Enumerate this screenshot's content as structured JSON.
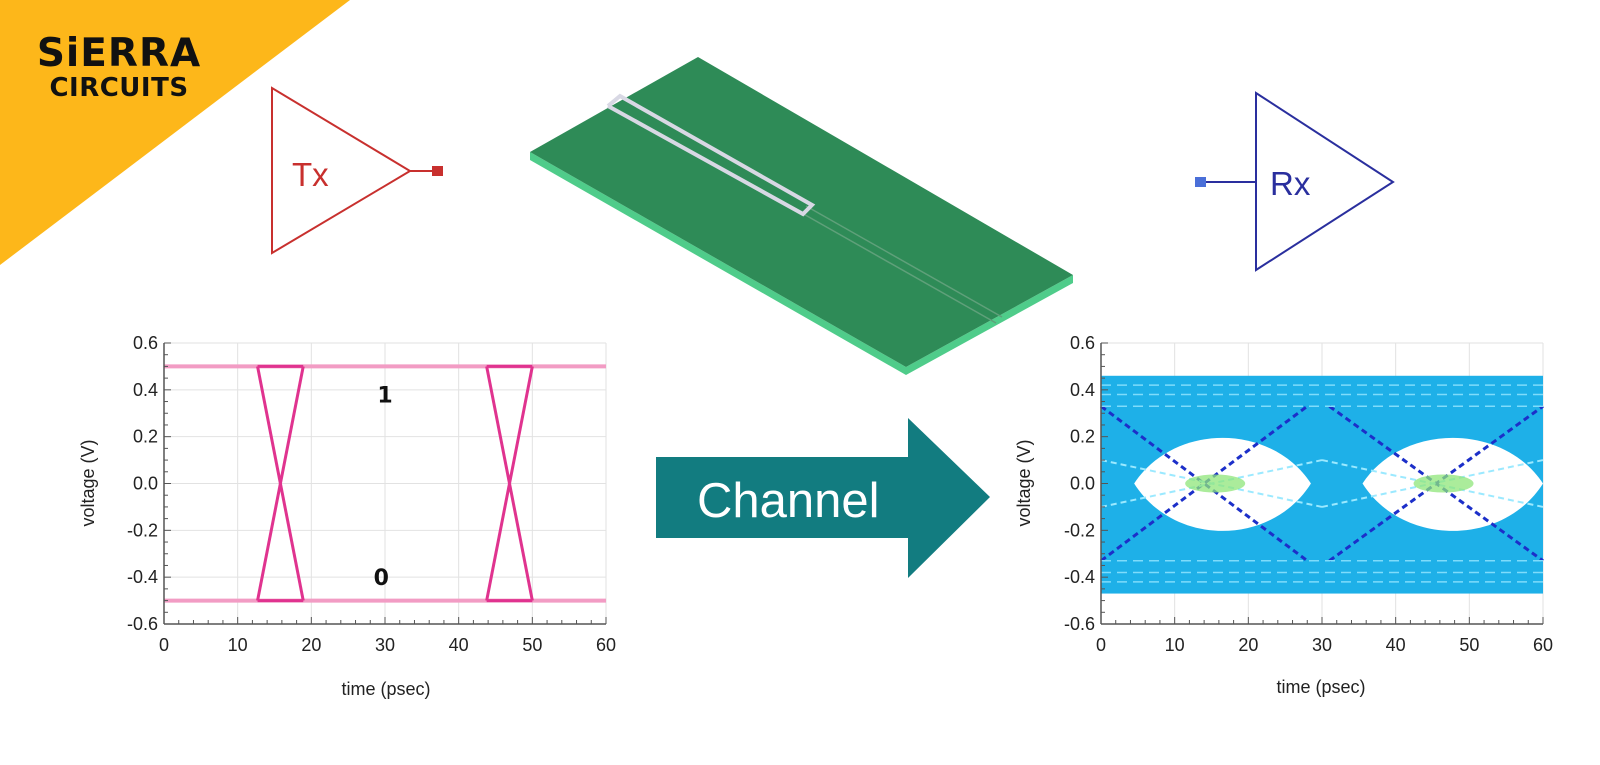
{
  "logo": {
    "line1": "SiERRA",
    "line2": "CIRCUITS",
    "background_color": "#FDB71A"
  },
  "transmitter": {
    "label": "Tx",
    "color": "#C8302E"
  },
  "receiver": {
    "label": "Rx",
    "color": "#2A2F9E"
  },
  "pcb_trace": {
    "board_color": "#2E8B57"
  },
  "channel_arrow": {
    "label": "Channel",
    "color": "#127C80"
  },
  "chart_data": [
    {
      "type": "line",
      "title": "",
      "xlabel": "time (psec)",
      "ylabel": "voltage (V)",
      "xlim": [
        0,
        60
      ],
      "ylim": [
        -0.6,
        0.6
      ],
      "xticks": [
        "0",
        "10",
        "20",
        "30",
        "40",
        "50",
        "60"
      ],
      "yticks": [
        "0.6",
        "0.4",
        "0.2",
        "0.0",
        "-0.2",
        "-0.4",
        "-0.6"
      ],
      "grid": true,
      "annotations": [
        {
          "text": "1",
          "x": 30,
          "y": 0.38
        },
        {
          "text": "0",
          "x": 29.5,
          "y": -0.4
        }
      ],
      "series": [
        {
          "values": [
            [
              0,
              0.5
            ],
            [
              60,
              0.5
            ]
          ]
        },
        {
          "values": [
            [
              0,
              -0.5
            ],
            [
              60,
              -0.5
            ]
          ]
        },
        {
          "values": [
            [
              12.7,
              0.5
            ],
            [
              18.9,
              -0.5
            ]
          ]
        },
        {
          "values": [
            [
              12.7,
              -0.5
            ],
            [
              18.9,
              0.5
            ]
          ]
        },
        {
          "values": [
            [
              43.8,
              0.5
            ],
            [
              50.0,
              -0.5
            ]
          ]
        },
        {
          "values": [
            [
              43.8,
              -0.5
            ],
            [
              50.0,
              0.5
            ]
          ]
        }
      ],
      "line_color": "#E0338F"
    },
    {
      "type": "line",
      "title": "",
      "xlabel": "time (psec)",
      "ylabel": "voltage (V)",
      "xlim": [
        0,
        60
      ],
      "ylim": [
        -0.6,
        0.6
      ],
      "xticks": [
        "0",
        "10",
        "20",
        "30",
        "40",
        "50",
        "60"
      ],
      "yticks": [
        "0.6",
        "0.4",
        "0.2",
        "0.0",
        "-0.2",
        "-0.4",
        "-0.6"
      ],
      "grid": true,
      "band": {
        "y_top": 0.46,
        "y_bottom": -0.47,
        "color": "#1EB0E8"
      },
      "eye_openings": [
        {
          "x_start": 4.5,
          "x_end": 28.5,
          "y_top": 0.26,
          "y_bottom": -0.27
        },
        {
          "x_start": 35.5,
          "x_end": 60,
          "y_top": 0.26,
          "y_bottom": -0.27
        }
      ],
      "crossings": [
        {
          "x": 15.5,
          "y": 0.0
        },
        {
          "x": 46.5,
          "y": 0.0
        }
      ],
      "trace_color": "#1C2FC9",
      "highlight_color": "#8FE67A"
    }
  ]
}
